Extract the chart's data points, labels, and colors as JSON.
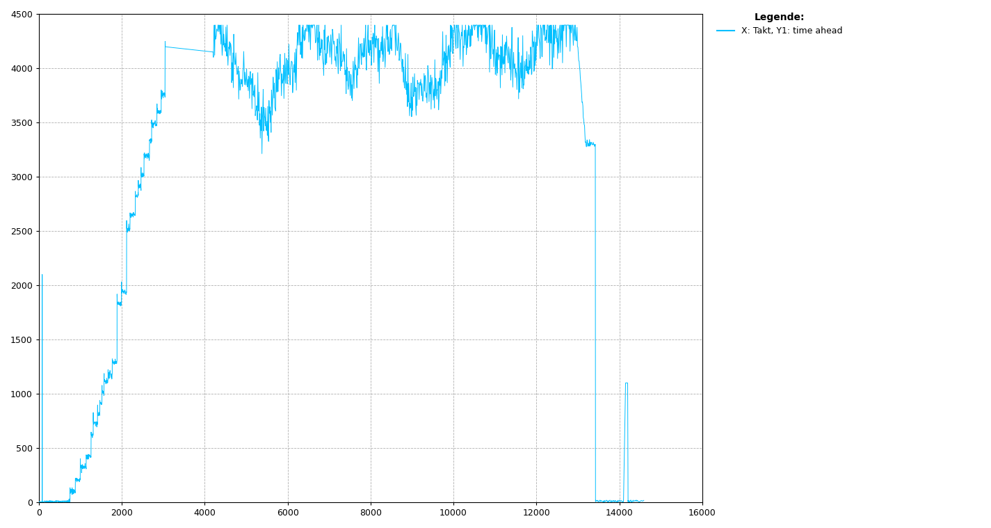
{
  "line_color": "#00bfff",
  "background_color": "#ffffff",
  "grid_color": "#b0b0b0",
  "grid_style": "--",
  "xlim": [
    0,
    16000
  ],
  "ylim": [
    0,
    4500
  ],
  "xticks": [
    0,
    2000,
    4000,
    6000,
    8000,
    10000,
    12000,
    14000,
    16000
  ],
  "yticks": [
    0,
    500,
    1000,
    1500,
    2000,
    2500,
    3000,
    3500,
    4000,
    4500
  ],
  "legend_title": "Legende:",
  "legend_label": "X: Takt, Y1: time ahead",
  "figsize": [
    14.25,
    7.59
  ],
  "dpi": 100
}
